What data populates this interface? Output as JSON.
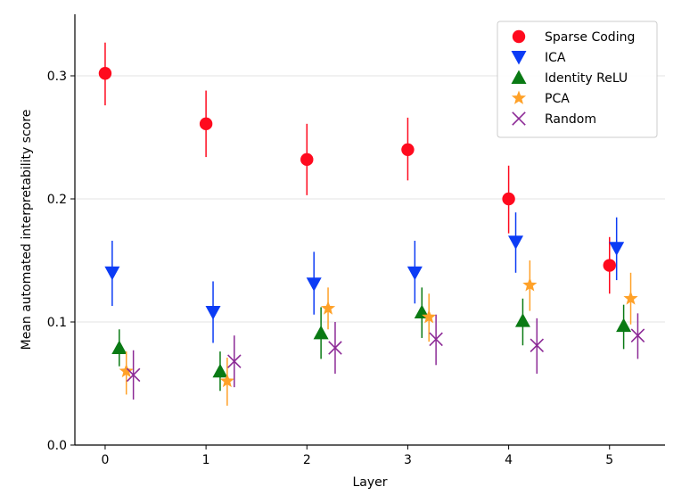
{
  "chart_data": {
    "type": "scatter",
    "title": "",
    "xlabel": "Layer",
    "ylabel": "Mean automated interpretability score",
    "xlim": [
      -0.3,
      5.55
    ],
    "ylim": [
      0.0,
      0.35
    ],
    "x_ticks": [
      0,
      1,
      2,
      3,
      4,
      5
    ],
    "y_ticks": [
      0.0,
      0.1,
      0.2,
      0.3
    ],
    "x_tick_labels": [
      "0",
      "1",
      "2",
      "3",
      "4",
      "5"
    ],
    "y_tick_labels": [
      "0.0",
      "0.1",
      "0.2",
      "0.3"
    ],
    "grid": "horizontal",
    "legend_position": "top-right",
    "series": [
      {
        "name": "Sparse Coding",
        "color": "#ff0a1e",
        "marker": "circle",
        "offset": 0.0,
        "x": [
          0,
          1,
          2,
          3,
          4,
          5
        ],
        "y": [
          0.302,
          0.261,
          0.232,
          0.24,
          0.2,
          0.146
        ],
        "err_low": [
          0.276,
          0.234,
          0.203,
          0.215,
          0.172,
          0.123
        ],
        "err_high": [
          0.327,
          0.288,
          0.261,
          0.266,
          0.227,
          0.169
        ]
      },
      {
        "name": "ICA",
        "color": "#0c3cf5",
        "marker": "triangle-down",
        "offset": 0.07,
        "x": [
          0,
          1,
          2,
          3,
          4,
          5
        ],
        "y": [
          0.14,
          0.108,
          0.131,
          0.14,
          0.165,
          0.16
        ],
        "err_low": [
          0.113,
          0.083,
          0.106,
          0.115,
          0.14,
          0.134
        ],
        "err_high": [
          0.166,
          0.133,
          0.157,
          0.166,
          0.189,
          0.185
        ]
      },
      {
        "name": "Identity ReLU",
        "color": "#0a7a14",
        "marker": "triangle-up",
        "offset": 0.14,
        "x": [
          0,
          1,
          2,
          3,
          4,
          5
        ],
        "y": [
          0.079,
          0.06,
          0.091,
          0.108,
          0.101,
          0.097
        ],
        "err_low": [
          0.064,
          0.044,
          0.07,
          0.087,
          0.081,
          0.078
        ],
        "err_high": [
          0.094,
          0.076,
          0.112,
          0.128,
          0.119,
          0.114
        ]
      },
      {
        "name": "PCA",
        "color": "#ffa128",
        "marker": "star",
        "offset": 0.21,
        "x": [
          0,
          1,
          2,
          3,
          4,
          5
        ],
        "y": [
          0.06,
          0.052,
          0.111,
          0.104,
          0.13,
          0.119
        ],
        "err_low": [
          0.041,
          0.032,
          0.094,
          0.084,
          0.109,
          0.098
        ],
        "err_high": [
          0.076,
          0.071,
          0.128,
          0.123,
          0.15,
          0.14
        ]
      },
      {
        "name": "Random",
        "color": "#8c2a96",
        "marker": "x",
        "offset": 0.28,
        "x": [
          0,
          1,
          2,
          3,
          4,
          5
        ],
        "y": [
          0.057,
          0.068,
          0.079,
          0.086,
          0.081,
          0.089
        ],
        "err_low": [
          0.037,
          0.047,
          0.058,
          0.065,
          0.058,
          0.07
        ],
        "err_high": [
          0.077,
          0.089,
          0.1,
          0.106,
          0.103,
          0.107
        ]
      }
    ]
  }
}
